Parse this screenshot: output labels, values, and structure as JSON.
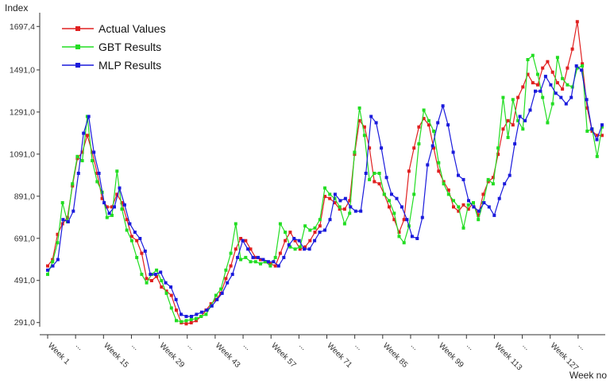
{
  "chart_data": {
    "type": "line",
    "ylabel": "Index",
    "xlabel": "Week no",
    "ylim": [
      271.0,
      1740.0
    ],
    "y_ticks": [
      "291,0",
      "491,0",
      "691,0",
      "891,0",
      "1091,0",
      "1291,0",
      "1491,0",
      "1697,4"
    ],
    "y_tick_values": [
      291.0,
      491.0,
      691.0,
      891.0,
      1091.0,
      1291.0,
      1491.0,
      1697.4
    ],
    "x_ticks": [
      "Week 1",
      "...",
      "Week 15",
      "...",
      "Week 29",
      "...",
      "Week 43",
      "...",
      "Week 57",
      "...",
      "Week 71",
      "...",
      "Week 85",
      "...",
      "Week 99",
      "...",
      "Week 113",
      "...",
      "Week 127",
      "..."
    ],
    "x_tick_weeks": [
      1,
      8,
      15,
      22,
      29,
      36,
      43,
      50,
      57,
      64,
      71,
      78,
      85,
      92,
      99,
      106,
      113,
      120,
      127,
      134
    ],
    "x_range": [
      1,
      140
    ],
    "grid": false,
    "legend_position": "top-left",
    "series": [
      {
        "name": "Actual Values",
        "color": "#e02020",
        "values": [
          560,
          590,
          710,
          760,
          790,
          940,
          1070,
          1100,
          1180,
          1100,
          1000,
          880,
          840,
          840,
          900,
          860,
          780,
          700,
          680,
          620,
          500,
          490,
          510,
          460,
          440,
          420,
          350,
          290,
          285,
          290,
          300,
          320,
          350,
          380,
          400,
          430,
          500,
          560,
          640,
          690,
          680,
          640,
          600,
          590,
          580,
          570,
          560,
          620,
          680,
          720,
          680,
          640,
          650,
          680,
          720,
          750,
          890,
          880,
          860,
          830,
          830,
          870,
          1090,
          1250,
          1220,
          1120,
          960,
          950,
          900,
          840,
          780,
          720,
          780,
          1010,
          1120,
          1220,
          1260,
          1230,
          1120,
          1010,
          960,
          920,
          840,
          820,
          850,
          830,
          860,
          800,
          900,
          960,
          980,
          1090,
          1210,
          1250,
          1230,
          1360,
          1410,
          1470,
          1430,
          1420,
          1500,
          1530,
          1480,
          1430,
          1400,
          1500,
          1590,
          1720,
          1520,
          1310,
          1200,
          1180,
          1180
        ]
      },
      {
        "name": "GBT Results",
        "color": "#22dd22",
        "values": [
          520,
          580,
          670,
          860,
          770,
          950,
          1080,
          1060,
          1270,
          1060,
          960,
          910,
          790,
          800,
          1010,
          830,
          730,
          680,
          600,
          520,
          480,
          520,
          540,
          490,
          430,
          360,
          300,
          295,
          300,
          305,
          310,
          320,
          330,
          370,
          420,
          450,
          540,
          620,
          760,
          590,
          600,
          580,
          580,
          570,
          580,
          560,
          600,
          760,
          720,
          650,
          640,
          650,
          750,
          730,
          740,
          780,
          930,
          900,
          880,
          840,
          760,
          810,
          1100,
          1310,
          1180,
          970,
          1000,
          1000,
          900,
          870,
          810,
          700,
          670,
          750,
          900,
          1140,
          1300,
          1250,
          1200,
          1050,
          950,
          900,
          870,
          840,
          740,
          850,
          860,
          780,
          860,
          970,
          950,
          1120,
          1360,
          1170,
          1350,
          1250,
          1210,
          1540,
          1560,
          1470,
          1360,
          1240,
          1330,
          1550,
          1450,
          1420,
          1410,
          1500,
          1510,
          1200,
          1210,
          1080,
          1220
        ]
      },
      {
        "name": "MLP Results",
        "color": "#1a1adc",
        "values": [
          540,
          560,
          590,
          780,
          770,
          820,
          1000,
          1190,
          1270,
          1100,
          1000,
          860,
          810,
          840,
          930,
          850,
          760,
          720,
          690,
          630,
          520,
          520,
          530,
          480,
          460,
          400,
          330,
          320,
          320,
          330,
          340,
          350,
          370,
          400,
          430,
          480,
          520,
          600,
          680,
          640,
          600,
          600,
          590,
          580,
          580,
          560,
          600,
          660,
          690,
          680,
          640,
          640,
          680,
          720,
          730,
          780,
          900,
          870,
          880,
          840,
          820,
          820,
          1000,
          1270,
          1240,
          1120,
          980,
          900,
          880,
          840,
          780,
          700,
          690,
          790,
          1040,
          1130,
          1240,
          1320,
          1230,
          1100,
          990,
          970,
          870,
          840,
          820,
          860,
          840,
          800,
          880,
          950,
          990,
          1140,
          1270,
          1250,
          1300,
          1390,
          1390,
          1460,
          1420,
          1380,
          1360,
          1330,
          1360,
          1510,
          1490,
          1350,
          1210,
          1160,
          1230
        ]
      }
    ]
  }
}
